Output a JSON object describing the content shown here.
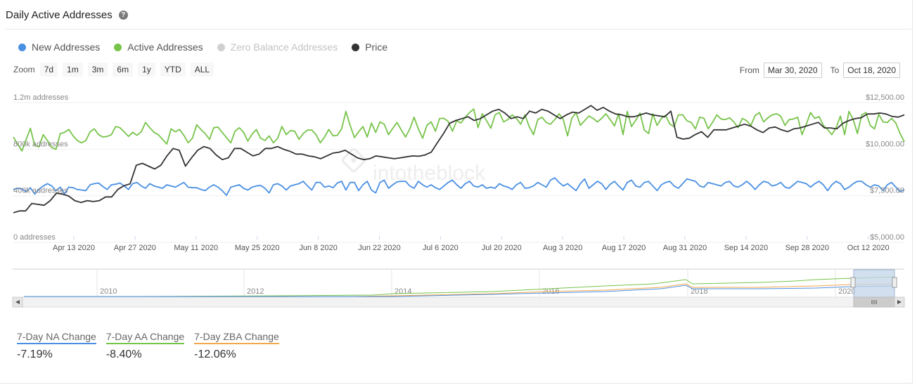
{
  "header": {
    "title": "Daily Active Addresses",
    "help_icon": "question-circle-icon"
  },
  "legend": [
    {
      "label": "New Addresses",
      "color": "#4a90e2",
      "enabled": true
    },
    {
      "label": "Active Addresses",
      "color": "#77c44a",
      "enabled": true
    },
    {
      "label": "Zero Balance Addresses",
      "color": "#d0d0d0",
      "enabled": false
    },
    {
      "label": "Price",
      "color": "#333333",
      "enabled": true
    }
  ],
  "zoom": {
    "label": "Zoom",
    "buttons": [
      "7d",
      "1m",
      "3m",
      "6m",
      "1y",
      "YTD",
      "ALL"
    ]
  },
  "range": {
    "from_label": "From",
    "from_value": "Mar 30, 2020",
    "to_label": "To",
    "to_value": "Oct 18, 2020"
  },
  "watermark": "intotheblock",
  "chart_data": {
    "type": "line",
    "title": "Daily Active Addresses",
    "x_range": [
      "2020-03-30",
      "2020-10-18"
    ],
    "x_ticks": [
      "Apr 13 2020",
      "Apr 27 2020",
      "May 11 2020",
      "May 25 2020",
      "Jun 8 2020",
      "Jun 22 2020",
      "Jul 6 2020",
      "Jul 20 2020",
      "Aug 3 2020",
      "Aug 17 2020",
      "Aug 31 2020",
      "Sep 14 2020",
      "Sep 28 2020",
      "Oct 12 2020"
    ],
    "y_left": {
      "ticks": [
        "1.2m addresses",
        "800k addresses",
        "400k addresses",
        "0 addresses"
      ],
      "range": [
        0,
        1200000
      ]
    },
    "y_right": {
      "ticks": [
        "$12,500.00",
        "$10,000.00",
        "$7,500.00",
        "$5,000.00"
      ],
      "range": [
        5000,
        12500
      ]
    },
    "series": [
      {
        "name": "Active Addresses",
        "axis": "left",
        "color": "#77c44a",
        "values": [
          850000,
          790000,
          730000,
          830000,
          925000,
          780000,
          765000,
          870000,
          820000,
          760000,
          745000,
          880000,
          890000,
          915000,
          860000,
          820000,
          800000,
          820000,
          895000,
          920000,
          870000,
          850000,
          855000,
          870000,
          940000,
          930000,
          895000,
          855000,
          890000,
          865000,
          895000,
          975000,
          930000,
          890000,
          870000,
          830000,
          790000,
          920000,
          895000,
          915000,
          865000,
          800000,
          840000,
          955000,
          915000,
          880000,
          830000,
          930000,
          935000,
          890000,
          845000,
          800000,
          900000,
          930000,
          890000,
          815000,
          875000,
          915000,
          840000,
          820000,
          860000,
          800000,
          840000,
          940000,
          870000,
          905000,
          900000,
          830000,
          880000,
          910000,
          910000,
          870000,
          800000,
          850000,
          915000,
          860000,
          865000,
          920000,
          1070000,
          950000,
          845000,
          895000,
          940000,
          850000,
          970000,
          890000,
          980000,
          960000,
          870000,
          925000,
          975000,
          910000,
          850000,
          920000,
          1020000,
          920000,
          840000,
          950000,
          980000,
          900000,
          1010000,
          1010000,
          985000,
          900000,
          990000,
          970000,
          1020000,
          1060000,
          1090000,
          930000,
          1050000,
          990000,
          925000,
          1040000,
          1060000,
          980000,
          1000000,
          1040000,
          1010000,
          960000,
          1040000,
          940000,
          870000,
          1000000,
          1020000,
          975000,
          960000,
          1000000,
          1050000,
          1000000,
          860000,
          1010000,
          1060000,
          950000,
          990000,
          1030000,
          1010000,
          980000,
          1010000,
          1050000,
          1000000,
          945000,
          1050000,
          870000,
          1070000,
          940000,
          995000,
          1055000,
          910000,
          880000,
          1050000,
          950000,
          1010000,
          1035000,
          960000,
          940000,
          1040000,
          1040000,
          990000,
          975000,
          920000,
          1020000,
          1010000,
          920000,
          975000,
          1040000,
          1005000,
          1000000,
          1015000,
          980000,
          930000,
          1010000,
          990000,
          950000,
          1035000,
          1060000,
          980000,
          1015000,
          1040000,
          1050000,
          1030000,
          950000,
          1000000,
          1005000,
          1020000,
          870000,
          960000,
          1060000,
          1010000,
          1025000,
          950000,
          915000,
          870000,
          930000,
          1030000,
          870000,
          1070000,
          1000000,
          880000,
          1040000,
          1060000,
          950000,
          920000,
          1045000,
          980000,
          975000,
          1010000,
          970000,
          880000,
          810000
        ]
      },
      {
        "name": "New Addresses",
        "axis": "left",
        "color": "#4a90e2",
        "values": [
          400000,
          410000,
          405000,
          380000,
          415000,
          360000,
          400000,
          430000,
          450000,
          430000,
          390000,
          420000,
          360000,
          420000,
          415000,
          400000,
          395000,
          390000,
          440000,
          450000,
          455000,
          425000,
          400000,
          440000,
          445000,
          455000,
          430000,
          400000,
          450000,
          460000,
          430000,
          410000,
          450000,
          430000,
          420000,
          410000,
          440000,
          430000,
          420000,
          440000,
          460000,
          420000,
          415000,
          415000,
          400000,
          390000,
          420000,
          440000,
          420000,
          390000,
          350000,
          420000,
          430000,
          440000,
          410000,
          395000,
          420000,
          430000,
          435000,
          410000,
          370000,
          440000,
          450000,
          430000,
          395000,
          430000,
          440000,
          450000,
          470000,
          430000,
          395000,
          460000,
          460000,
          420000,
          430000,
          415000,
          455000,
          470000,
          395000,
          460000,
          460000,
          390000,
          440000,
          470000,
          395000,
          370000,
          460000,
          480000,
          410000,
          440000,
          465000,
          470000,
          470000,
          430000,
          410000,
          470000,
          440000,
          420000,
          440000,
          415000,
          400000,
          430000,
          460000,
          480000,
          440000,
          410000,
          450000,
          470000,
          430000,
          420000,
          440000,
          410000,
          420000,
          410000,
          450000,
          430000,
          420000,
          400000,
          440000,
          460000,
          410000,
          415000,
          430000,
          460000,
          440000,
          420000,
          480000,
          500000,
          460000,
          430000,
          450000,
          420000,
          390000,
          450000,
          490000,
          410000,
          440000,
          470000,
          450000,
          400000,
          445000,
          470000,
          430000,
          395000,
          460000,
          480000,
          430000,
          420000,
          460000,
          470000,
          430000,
          390000,
          440000,
          460000,
          470000,
          430000,
          410000,
          450000,
          490000,
          480000,
          470000,
          430000,
          420000,
          460000,
          450000,
          440000,
          430000,
          460000,
          470000,
          430000,
          420000,
          440000,
          470000,
          440000,
          400000,
          440000,
          470000,
          460000,
          430000,
          440000,
          460000,
          420000,
          410000,
          440000,
          470000,
          460000,
          450000,
          420000,
          450000,
          470000,
          440000,
          390000,
          440000,
          470000,
          450000,
          400000,
          420000,
          450000,
          470000,
          470000,
          440000,
          420000,
          440000,
          430000,
          390000,
          440000,
          460000,
          420000,
          380000,
          400000
        ]
      },
      {
        "name": "Price",
        "axis": "right",
        "color": "#333333",
        "values": [
          6250,
          6350,
          6350,
          6750,
          6700,
          6650,
          6900,
          7300,
          7250,
          7150,
          6900,
          6800,
          6900,
          6850,
          6900,
          7100,
          7100,
          7500,
          7700,
          7800,
          8800,
          8900,
          8750,
          8600,
          8800,
          9300,
          9700,
          9600,
          8750,
          9200,
          9600,
          9800,
          9700,
          9350,
          9100,
          9200,
          9700,
          9700,
          9500,
          9300,
          9400,
          9700,
          9700,
          9800,
          9650,
          9550,
          9400,
          9400,
          9300,
          9250,
          9150,
          9300,
          9450,
          9500,
          9600,
          9400,
          9200,
          9100,
          9150,
          9300,
          9250,
          9200,
          9150,
          9200,
          9250,
          9300,
          9280,
          9350,
          9500,
          10000,
          10500,
          11050,
          11200,
          11300,
          11400,
          11200,
          11300,
          11500,
          11700,
          11800,
          11600,
          11300,
          11400,
          11300,
          11700,
          11600,
          11800,
          11700,
          11500,
          11300,
          11500,
          11650,
          11600,
          11800,
          12000,
          11750,
          11900,
          11700,
          11550,
          11500,
          11400,
          11400,
          11500,
          11600,
          11500,
          11450,
          11400,
          11700,
          10300,
          10200,
          10250,
          10450,
          10600,
          10300,
          10700,
          10700,
          10700,
          10800,
          10900,
          11000,
          10900,
          10700,
          10550,
          10800,
          10850,
          10700,
          10600,
          10750,
          10800,
          10900,
          11000,
          11100,
          10800,
          10800,
          10750,
          11050,
          11200,
          11300,
          11350,
          11550,
          11550,
          11600,
          11550,
          11420,
          11380,
          11500
        ]
      }
    ]
  },
  "navigator": {
    "ticks": [
      "2010",
      "2012",
      "2014",
      "2016",
      "2018",
      "2020"
    ]
  },
  "stats": [
    {
      "label": "7-Day NA Change",
      "value": "-7.19%",
      "color": "#4a90e2"
    },
    {
      "label": "7-Day AA Change",
      "value": "-8.40%",
      "color": "#77c44a"
    },
    {
      "label": "7-Day ZBA Change",
      "value": "-12.06%",
      "color": "#f5a74d"
    }
  ]
}
